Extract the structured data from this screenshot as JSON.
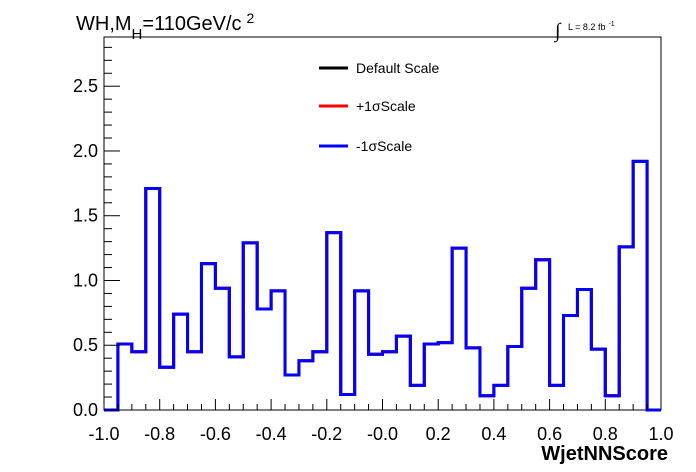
{
  "chart_data": {
    "type": "line",
    "step": true,
    "title_main": "WH,M",
    "title_sub": "H",
    "title_value": "=110GeV/c",
    "title_sup": "2",
    "lumi_integral": "∫",
    "lumi_text": "L = 8.2 fb",
    "lumi_sup": "-1",
    "xlabel": "WjetNNScore",
    "ylabel": "",
    "xlim": [
      -1.0,
      1.0
    ],
    "ylim": [
      0.0,
      2.88
    ],
    "x_ticks": [
      -1.0,
      -0.8,
      -0.6,
      -0.4,
      -0.2,
      0.0,
      0.2,
      0.4,
      0.6,
      0.8,
      1.0
    ],
    "x_tick_labels": [
      "-1.0",
      "-0.8",
      "-0.6",
      "-0.4",
      "-0.2",
      "-0.0",
      "0.2",
      "0.4",
      "0.6",
      "0.8",
      "1.0"
    ],
    "y_ticks": [
      0.0,
      0.5,
      1.0,
      1.5,
      2.0,
      2.5
    ],
    "y_tick_labels": [
      "0.0",
      "0.5",
      "1.0",
      "1.5",
      "2.0",
      "2.5"
    ],
    "bin_edges": [
      -1.0,
      -0.95,
      -0.9,
      -0.85,
      -0.8,
      -0.75,
      -0.7,
      -0.65,
      -0.6,
      -0.55,
      -0.5,
      -0.45,
      -0.4,
      -0.35,
      -0.3,
      -0.25,
      -0.2,
      -0.15,
      -0.1,
      -0.05,
      0.0,
      0.05,
      0.1,
      0.15,
      0.2,
      0.25,
      0.3,
      0.35,
      0.4,
      0.45,
      0.5,
      0.55,
      0.6,
      0.65,
      0.7,
      0.75,
      0.8,
      0.85,
      0.9,
      0.95,
      1.0
    ],
    "series": [
      {
        "name": "Default Scale",
        "color": "#000000",
        "values": [
          0.0,
          0.51,
          0.45,
          1.71,
          0.33,
          0.74,
          0.45,
          1.13,
          0.94,
          0.41,
          1.29,
          0.78,
          0.92,
          0.27,
          0.38,
          0.45,
          1.37,
          0.12,
          0.92,
          0.43,
          0.45,
          0.57,
          0.19,
          0.51,
          0.52,
          1.25,
          0.48,
          0.11,
          0.19,
          0.49,
          0.94,
          1.16,
          0.19,
          0.73,
          0.93,
          0.47,
          0.11,
          1.26,
          1.92,
          0.0
        ]
      },
      {
        "name": "+1σScale",
        "color": "#ff0000",
        "values": [
          0.0,
          0.51,
          0.45,
          1.71,
          0.33,
          0.74,
          0.45,
          1.13,
          0.94,
          0.41,
          1.29,
          0.78,
          0.92,
          0.27,
          0.38,
          0.45,
          1.37,
          0.12,
          0.92,
          0.43,
          0.45,
          0.57,
          0.19,
          0.51,
          0.52,
          1.25,
          0.48,
          0.11,
          0.19,
          0.49,
          0.94,
          1.16,
          0.19,
          0.73,
          0.93,
          0.47,
          0.11,
          1.26,
          1.92,
          0.0
        ]
      },
      {
        "name": "-1σScale",
        "color": "#0000ff",
        "values": [
          0.0,
          0.51,
          0.45,
          1.71,
          0.33,
          0.74,
          0.45,
          1.13,
          0.94,
          0.41,
          1.29,
          0.78,
          0.92,
          0.27,
          0.38,
          0.45,
          1.37,
          0.12,
          0.92,
          0.43,
          0.45,
          0.57,
          0.19,
          0.51,
          0.52,
          1.25,
          0.48,
          0.11,
          0.19,
          0.49,
          0.94,
          1.16,
          0.19,
          0.73,
          0.93,
          0.47,
          0.11,
          1.26,
          1.92,
          0.0
        ]
      }
    ],
    "legend": {
      "position": "top-center",
      "entries": [
        {
          "label": "Default Scale",
          "color": "#000000"
        },
        {
          "label": "+1σScale",
          "color": "#ff0000"
        },
        {
          "label": "-1σScale",
          "color": "#0000ff"
        }
      ]
    },
    "grid": false
  }
}
